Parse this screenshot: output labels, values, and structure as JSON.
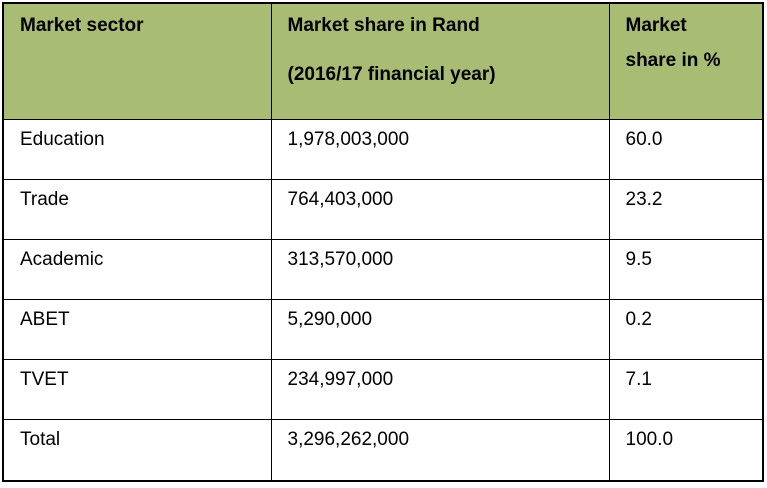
{
  "table": {
    "header": {
      "sector_label": "Market sector",
      "rand_label_line1": "Market share in Rand",
      "rand_label_line2": "(2016/17 financial year)",
      "percent_label_line1": "Market",
      "percent_label_line2": "share in %"
    },
    "rows": [
      {
        "sector": "Education",
        "rand": "1,978,003,000",
        "percent": "60.0"
      },
      {
        "sector": "Trade",
        "rand": "764,403,000",
        "percent": "23.2"
      },
      {
        "sector": "Academic",
        "rand": "313,570,000",
        "percent": "9.5"
      },
      {
        "sector": "ABET",
        "rand": "5,290,000",
        "percent": "0.2"
      },
      {
        "sector": "TVET",
        "rand": "234,997,000",
        "percent": "7.1"
      },
      {
        "sector": "Total",
        "rand": "3,296,262,000",
        "percent": "100.0"
      }
    ],
    "colors": {
      "header_bg": "#a9bc74",
      "border": "#000000",
      "text": "#000000"
    }
  },
  "chart_data": {
    "type": "table",
    "title": "",
    "columns": [
      "Market sector",
      "Market share in Rand (2016/17 financial year)",
      "Market share in %"
    ],
    "categories": [
      "Education",
      "Trade",
      "Academic",
      "ABET",
      "TVET",
      "Total"
    ],
    "series": [
      {
        "name": "Market share in Rand (2016/17 financial year)",
        "values": [
          1978003000,
          764403000,
          313570000,
          5290000,
          234997000,
          3296262000
        ]
      },
      {
        "name": "Market share in %",
        "values": [
          60.0,
          23.2,
          9.5,
          0.2,
          7.1,
          100.0
        ]
      }
    ]
  }
}
